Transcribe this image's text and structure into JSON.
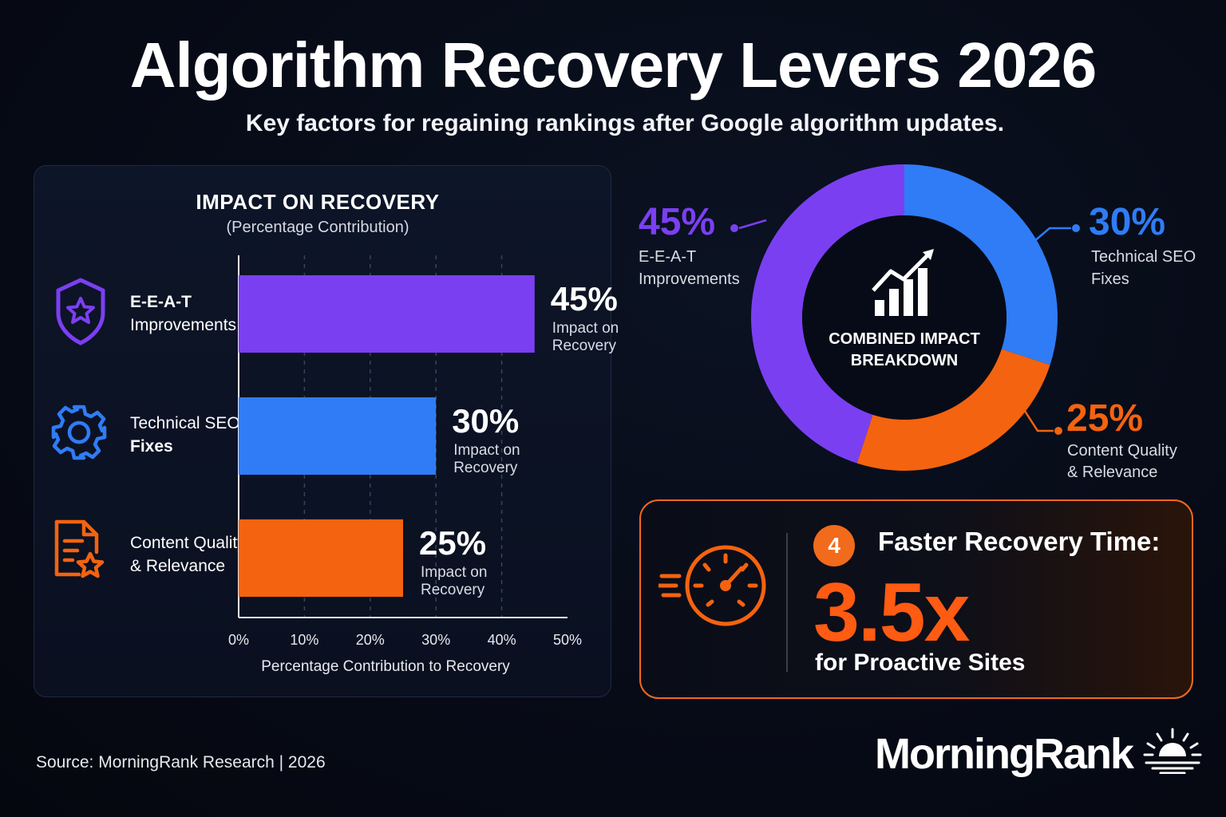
{
  "header": {
    "title": "Algorithm Recovery Levers 2026",
    "subtitle": "Key factors for regaining rankings after Google algorithm updates."
  },
  "bar_panel": {
    "title": "IMPACT ON RECOVERY",
    "subtitle": "(Percentage Contribution)",
    "categories": [
      {
        "line1": "E-E-A-T",
        "line2": "Improvements",
        "icon": "shield-star-icon",
        "color": "#7b3ff2"
      },
      {
        "line1": "Technical SEO",
        "line2": "Fixes",
        "icon": "gear-icon",
        "color": "#2f7cf6"
      },
      {
        "line1": "Content Quality",
        "line2": "& Relevance",
        "icon": "document-star-icon",
        "color": "#f4630f"
      }
    ],
    "value_caption_line1": "Impact on",
    "value_caption_line2": "Recovery",
    "x_ticks": [
      "0%",
      "10%",
      "20%",
      "30%",
      "40%",
      "50%"
    ],
    "xlabel": "Percentage Contribution to Recovery"
  },
  "donut": {
    "center_line1": "COMBINED IMPACT",
    "center_line2": "BREAKDOWN",
    "center_icon": "growth-chart-icon",
    "labels": [
      {
        "pct": "45%",
        "line1": "E-E-A-T",
        "line2": "Improvements"
      },
      {
        "pct": "30%",
        "line1": "Technical SEO",
        "line2": "Fixes"
      },
      {
        "pct": "25%",
        "line1": "Content Quality",
        "line2": "& Relevance"
      }
    ]
  },
  "recovery_card": {
    "badge": "4",
    "heading": "Faster Recovery Time:",
    "value": "3.5x",
    "footer": "for Proactive Sites",
    "icon": "speedometer-icon"
  },
  "source": "Source: MorningRank Research | 2026",
  "brand": {
    "name": "MorningRank",
    "icon": "sunrise-icon"
  },
  "chart_data": [
    {
      "type": "bar",
      "orientation": "horizontal",
      "title": "IMPACT ON RECOVERY",
      "subtitle": "(Percentage Contribution)",
      "categories": [
        "E-E-A-T Improvements",
        "Technical SEO Fixes",
        "Content Quality & Relevance"
      ],
      "values": [
        45,
        30,
        25
      ],
      "colors": [
        "#7b3ff2",
        "#2f7cf6",
        "#f4630f"
      ],
      "xlabel": "Percentage Contribution to Recovery",
      "xlim": [
        0,
        50
      ],
      "grid": true
    },
    {
      "type": "pie",
      "style": "donut",
      "title": "COMBINED IMPACT BREAKDOWN",
      "categories": [
        "E-E-A-T Improvements",
        "Technical SEO Fixes",
        "Content Quality & Relevance"
      ],
      "values": [
        45,
        30,
        25
      ],
      "colors": [
        "#7b3ff2",
        "#2f7cf6",
        "#f4630f"
      ]
    }
  ],
  "colors": {
    "purple": "#7b3ff2",
    "blue": "#2f7cf6",
    "orange": "#f4630f",
    "background": "#070b17"
  }
}
